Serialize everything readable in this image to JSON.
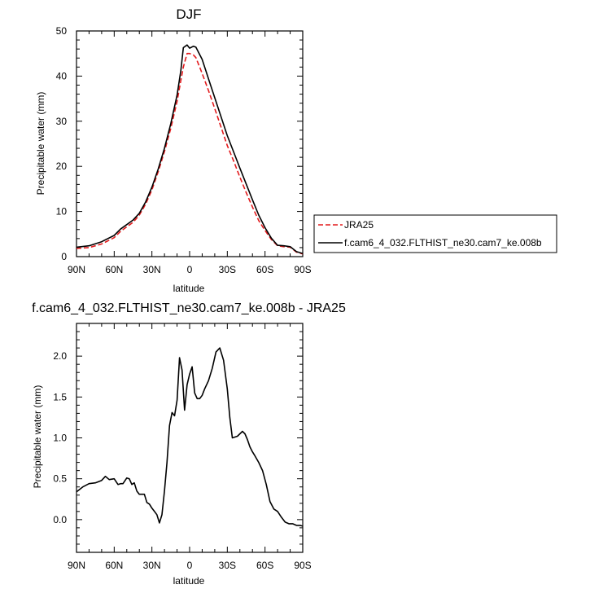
{
  "chart_data": [
    {
      "type": "line",
      "title": "DJF",
      "xlabel": "latitude",
      "ylabel": "Precipitable water (mm)",
      "xlim": [
        90,
        -90
      ],
      "ylim": [
        0,
        50
      ],
      "x_ticks": [
        {
          "value": 90,
          "label": "90N"
        },
        {
          "value": 60,
          "label": "60N"
        },
        {
          "value": 30,
          "label": "30N"
        },
        {
          "value": 0,
          "label": "0"
        },
        {
          "value": -30,
          "label": "30S"
        },
        {
          "value": -60,
          "label": "60S"
        },
        {
          "value": -90,
          "label": "90S"
        }
      ],
      "y_ticks": [
        {
          "value": 0,
          "label": "0"
        },
        {
          "value": 10,
          "label": "10"
        },
        {
          "value": 20,
          "label": "20"
        },
        {
          "value": 30,
          "label": "30"
        },
        {
          "value": 40,
          "label": "40"
        },
        {
          "value": 50,
          "label": "50"
        }
      ],
      "legend_position": "right",
      "series": [
        {
          "name": "JRA25",
          "color": "#e31a1c",
          "style": "dashed",
          "x": [
            90,
            80,
            70,
            60,
            55,
            50,
            45,
            40,
            35,
            30,
            25,
            20,
            15,
            10,
            7,
            5,
            2,
            0,
            -3,
            -5,
            -10,
            -15,
            -20,
            -25,
            -30,
            -35,
            -40,
            -45,
            -50,
            -55,
            -60,
            -65,
            -70,
            -75,
            -80,
            -85,
            -90
          ],
          "y": [
            1.8,
            2.0,
            2.8,
            4.2,
            5.6,
            6.6,
            7.6,
            9.2,
            11.6,
            14.8,
            18.8,
            23.3,
            28.4,
            34.4,
            39.0,
            42.0,
            45.0,
            45.0,
            44.7,
            44.1,
            40.6,
            36.8,
            32.8,
            28.7,
            24.6,
            21.2,
            17.6,
            14.2,
            11.0,
            8.0,
            5.8,
            3.8,
            2.4,
            2.2,
            2.1,
            1.0,
            0.6
          ]
        },
        {
          "name": "f.cam6_4_032.FLTHIST_ne30.cam7_ke.008b",
          "color": "#000000",
          "style": "solid",
          "x": [
            90,
            80,
            70,
            60,
            55,
            50,
            45,
            40,
            35,
            30,
            25,
            20,
            15,
            10,
            7,
            5,
            2,
            0,
            -3,
            -5,
            -10,
            -15,
            -20,
            -25,
            -30,
            -35,
            -40,
            -45,
            -50,
            -55,
            -60,
            -65,
            -70,
            -75,
            -80,
            -85,
            -90
          ],
          "y": [
            2.1,
            2.4,
            3.3,
            4.7,
            6.1,
            7.1,
            8.1,
            9.6,
            12.1,
            15.4,
            19.4,
            24.0,
            29.4,
            35.8,
            41.2,
            46.3,
            46.9,
            46.2,
            46.6,
            46.4,
            43.7,
            39.4,
            35.2,
            31.0,
            26.8,
            23.2,
            19.6,
            16.1,
            12.6,
            9.2,
            6.4,
            4.1,
            2.5,
            2.4,
            2.2,
            1.1,
            0.7
          ]
        }
      ]
    },
    {
      "type": "line",
      "title": "f.cam6_4_032.FLTHIST_ne30.cam7_ke.008b - JRA25",
      "xlabel": "latitude",
      "ylabel": "Precipitable water (mm)",
      "xlim": [
        90,
        -90
      ],
      "ylim": [
        -0.4,
        2.4
      ],
      "x_ticks": [
        {
          "value": 90,
          "label": "90N"
        },
        {
          "value": 60,
          "label": "60N"
        },
        {
          "value": 30,
          "label": "30N"
        },
        {
          "value": 0,
          "label": "0"
        },
        {
          "value": -30,
          "label": "30S"
        },
        {
          "value": -60,
          "label": "60S"
        },
        {
          "value": -90,
          "label": "90S"
        }
      ],
      "y_ticks": [
        {
          "value": 0,
          "label": "0.0"
        },
        {
          "value": 0.5,
          "label": "0.5"
        },
        {
          "value": 1.0,
          "label": "1.0"
        },
        {
          "value": 1.5,
          "label": "1.5"
        },
        {
          "value": 2.0,
          "label": "2.0"
        }
      ],
      "series": [
        {
          "color": "#000000",
          "style": "solid",
          "x": [
            90,
            85,
            80,
            75,
            70,
            67,
            64,
            60,
            57,
            55,
            53,
            50,
            48,
            46,
            44,
            42,
            40,
            38,
            36,
            34,
            32,
            30,
            28,
            26,
            24,
            22,
            20,
            18,
            16,
            14,
            12,
            10,
            8,
            6,
            4,
            2,
            0,
            -2,
            -4,
            -6,
            -8,
            -10,
            -12,
            -15,
            -18,
            -21,
            -24,
            -27,
            -30,
            -32,
            -34,
            -36,
            -38,
            -40,
            -42,
            -44,
            -46,
            -48,
            -50,
            -52,
            -55,
            -58,
            -61,
            -64,
            -67,
            -70,
            -73,
            -76,
            -79,
            -82,
            -85,
            -88,
            -90
          ],
          "y": [
            0.34,
            0.4,
            0.44,
            0.45,
            0.48,
            0.53,
            0.49,
            0.5,
            0.43,
            0.44,
            0.44,
            0.51,
            0.5,
            0.43,
            0.45,
            0.35,
            0.31,
            0.31,
            0.31,
            0.21,
            0.19,
            0.14,
            0.1,
            0.06,
            -0.04,
            0.06,
            0.35,
            0.7,
            1.15,
            1.31,
            1.27,
            1.46,
            1.98,
            1.83,
            1.34,
            1.65,
            1.78,
            1.87,
            1.55,
            1.48,
            1.48,
            1.52,
            1.6,
            1.7,
            1.85,
            2.05,
            2.1,
            1.95,
            1.6,
            1.25,
            1.0,
            1.01,
            1.02,
            1.05,
            1.08,
            1.05,
            0.98,
            0.89,
            0.83,
            0.78,
            0.7,
            0.6,
            0.43,
            0.22,
            0.13,
            0.1,
            0.03,
            -0.03,
            -0.05,
            -0.05,
            -0.07,
            -0.07,
            -0.08
          ]
        }
      ]
    }
  ]
}
